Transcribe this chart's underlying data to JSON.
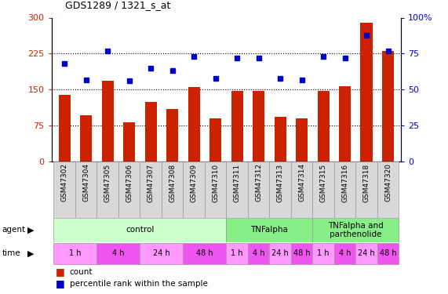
{
  "title": "GDS1289 / 1321_s_at",
  "samples": [
    "GSM47302",
    "GSM47304",
    "GSM47305",
    "GSM47306",
    "GSM47307",
    "GSM47308",
    "GSM47309",
    "GSM47310",
    "GSM47311",
    "GSM47312",
    "GSM47313",
    "GSM47314",
    "GSM47315",
    "GSM47316",
    "GSM47318",
    "GSM47320"
  ],
  "counts": [
    140,
    97,
    168,
    82,
    125,
    110,
    155,
    90,
    148,
    147,
    93,
    90,
    148,
    157,
    290,
    230
  ],
  "percentiles": [
    68,
    57,
    77,
    56,
    65,
    63,
    73,
    58,
    72,
    72,
    58,
    57,
    73,
    72,
    88,
    77
  ],
  "bar_color": "#CC2200",
  "dot_color": "#0000CC",
  "ylim_left": [
    0,
    300
  ],
  "ylim_right": [
    0,
    100
  ],
  "yticks_left": [
    0,
    75,
    150,
    225,
    300
  ],
  "yticks_right": [
    0,
    25,
    50,
    75,
    100
  ],
  "ytick_labels_left": [
    "0",
    "75",
    "150",
    "225",
    "300"
  ],
  "ytick_labels_right": [
    "0",
    "25",
    "50",
    "75",
    "100%"
  ],
  "hlines": [
    75,
    150,
    225
  ],
  "agent_groups": [
    {
      "label": "control",
      "start": 0,
      "end": 7,
      "color": "#CCFFCC"
    },
    {
      "label": "TNFalpha",
      "start": 8,
      "end": 11,
      "color": "#88EE88"
    },
    {
      "label": "TNFalpha and\nparthenolide",
      "start": 12,
      "end": 15,
      "color": "#88EE88"
    }
  ],
  "time_groups": [
    {
      "label": "1 h",
      "start": 0,
      "end": 1,
      "color": "#FF99FF"
    },
    {
      "label": "4 h",
      "start": 2,
      "end": 3,
      "color": "#EE55EE"
    },
    {
      "label": "24 h",
      "start": 4,
      "end": 5,
      "color": "#FF99FF"
    },
    {
      "label": "48 h",
      "start": 6,
      "end": 7,
      "color": "#EE55EE"
    },
    {
      "label": "1 h",
      "start": 8,
      "end": 8,
      "color": "#FF99FF"
    },
    {
      "label": "4 h",
      "start": 9,
      "end": 9,
      "color": "#EE55EE"
    },
    {
      "label": "24 h",
      "start": 10,
      "end": 10,
      "color": "#FF99FF"
    },
    {
      "label": "48 h",
      "start": 11,
      "end": 11,
      "color": "#EE55EE"
    },
    {
      "label": "1 h",
      "start": 12,
      "end": 12,
      "color": "#FF99FF"
    },
    {
      "label": "4 h",
      "start": 13,
      "end": 13,
      "color": "#EE55EE"
    },
    {
      "label": "24 h",
      "start": 14,
      "end": 14,
      "color": "#FF99FF"
    },
    {
      "label": "48 h",
      "start": 15,
      "end": 15,
      "color": "#EE55EE"
    }
  ],
  "legend_count_color": "#CC2200",
  "legend_dot_color": "#0000CC"
}
